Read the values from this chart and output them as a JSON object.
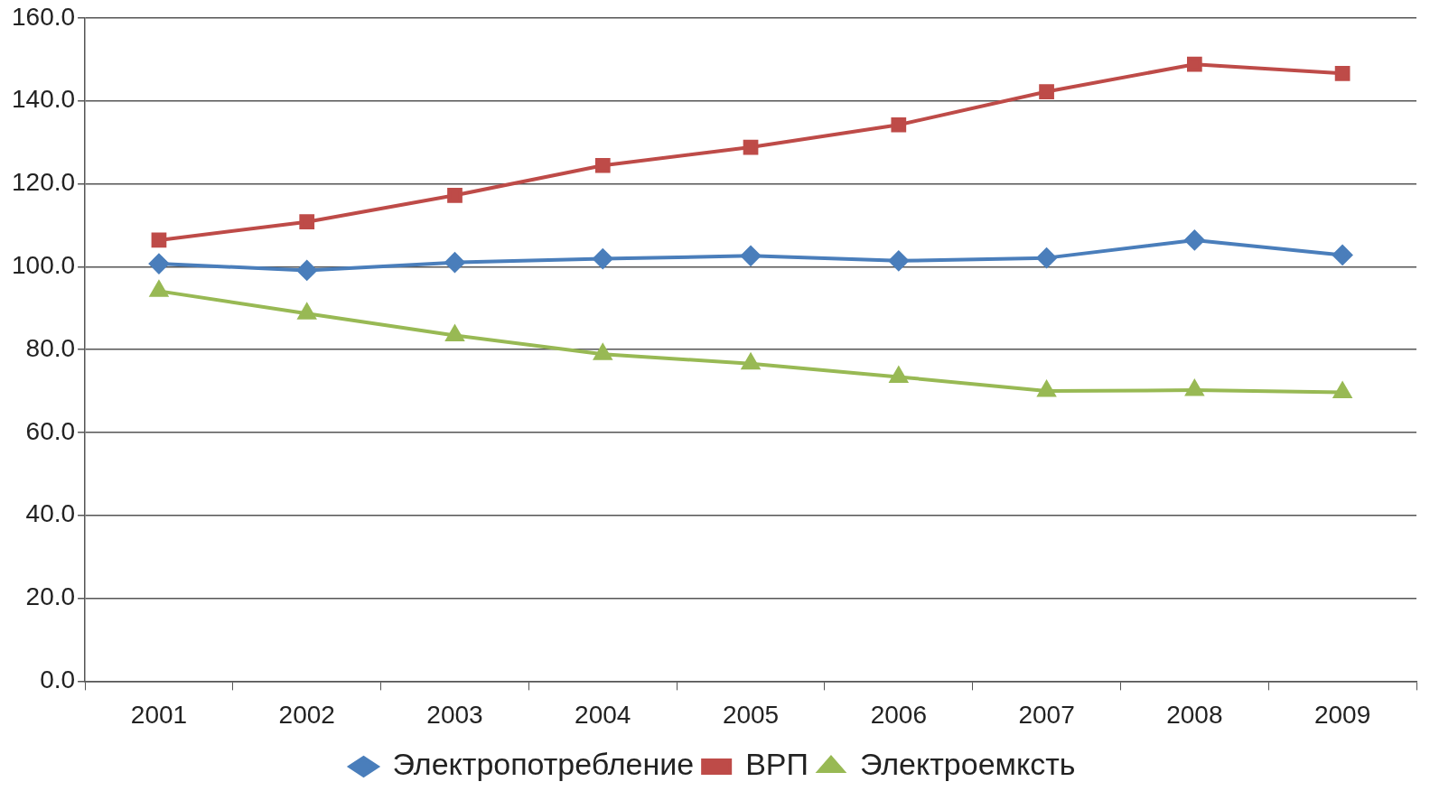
{
  "chart_data": {
    "type": "line",
    "categories": [
      "2001",
      "2002",
      "2003",
      "2004",
      "2005",
      "2006",
      "2007",
      "2008",
      "2009"
    ],
    "series": [
      {
        "name": "Электропотребление",
        "color": "#4a7ebb",
        "marker": "diamond",
        "values": [
          100.7,
          99.1,
          101.0,
          101.9,
          102.6,
          101.4,
          102.1,
          106.4,
          102.8
        ]
      },
      {
        "name": "ВРП",
        "color": "#be4b48",
        "marker": "square",
        "values": [
          106.4,
          110.8,
          117.2,
          124.4,
          128.8,
          134.2,
          142.2,
          148.8,
          146.6
        ]
      },
      {
        "name": "Электроемксть",
        "color": "#98b954",
        "marker": "triangle",
        "values": [
          94.1,
          88.7,
          83.4,
          78.9,
          76.6,
          73.4,
          70.0,
          70.2,
          69.7
        ]
      }
    ],
    "ylim": [
      0,
      160
    ],
    "yticks": [
      {
        "value": 0,
        "label": "0.0"
      },
      {
        "value": 20,
        "label": "20.0"
      },
      {
        "value": 40,
        "label": "40.0"
      },
      {
        "value": 60,
        "label": "60.0"
      },
      {
        "value": 80,
        "label": "80.0"
      },
      {
        "value": 100,
        "label": "100.0"
      },
      {
        "value": 120,
        "label": "120.0"
      },
      {
        "value": 140,
        "label": "140.0"
      },
      {
        "value": 160,
        "label": "160.0"
      }
    ],
    "grid": "y",
    "legend": "bottom"
  }
}
